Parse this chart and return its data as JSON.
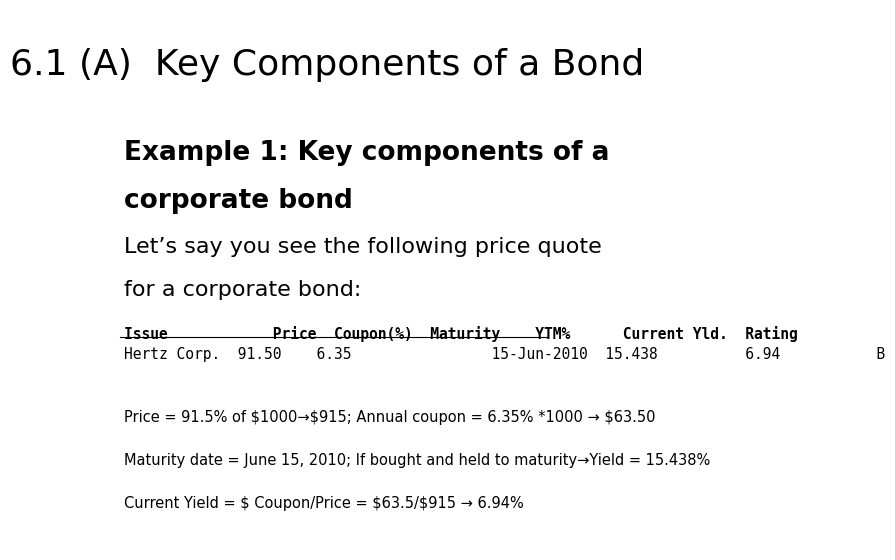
{
  "title": "6.1 (A)  Key Components of a Bond",
  "title_fontsize": 26,
  "bg_color": "#ffffff",
  "example_heading_line1": "Example 1: Key components of a",
  "example_heading_line2": "corporate bond",
  "heading_fontsize": 19,
  "subheading_line1": "Let’s say you see the following price quote",
  "subheading_line2": "for a corporate bond:",
  "subheading_fontsize": 16,
  "table_header": "Issue            Price  Coupon(%)  Maturity    YTM%      Current Yld.  Rating",
  "table_row": "Hertz Corp.  91.50    6.35                15-Jun-2010  15.438          6.94           B",
  "table_fontsize": 10.5,
  "notes": [
    "Price = 91.5% of $1000→$915; Annual coupon = 6.35% *1000 → $63.50",
    "Maturity date = June 15, 2010; If bought and held to maturity→Yield = 15.438%",
    "Current Yield = $ Coupon/Price = $63.5/$915 → 6.94%"
  ],
  "notes_fontsize": 10.5
}
